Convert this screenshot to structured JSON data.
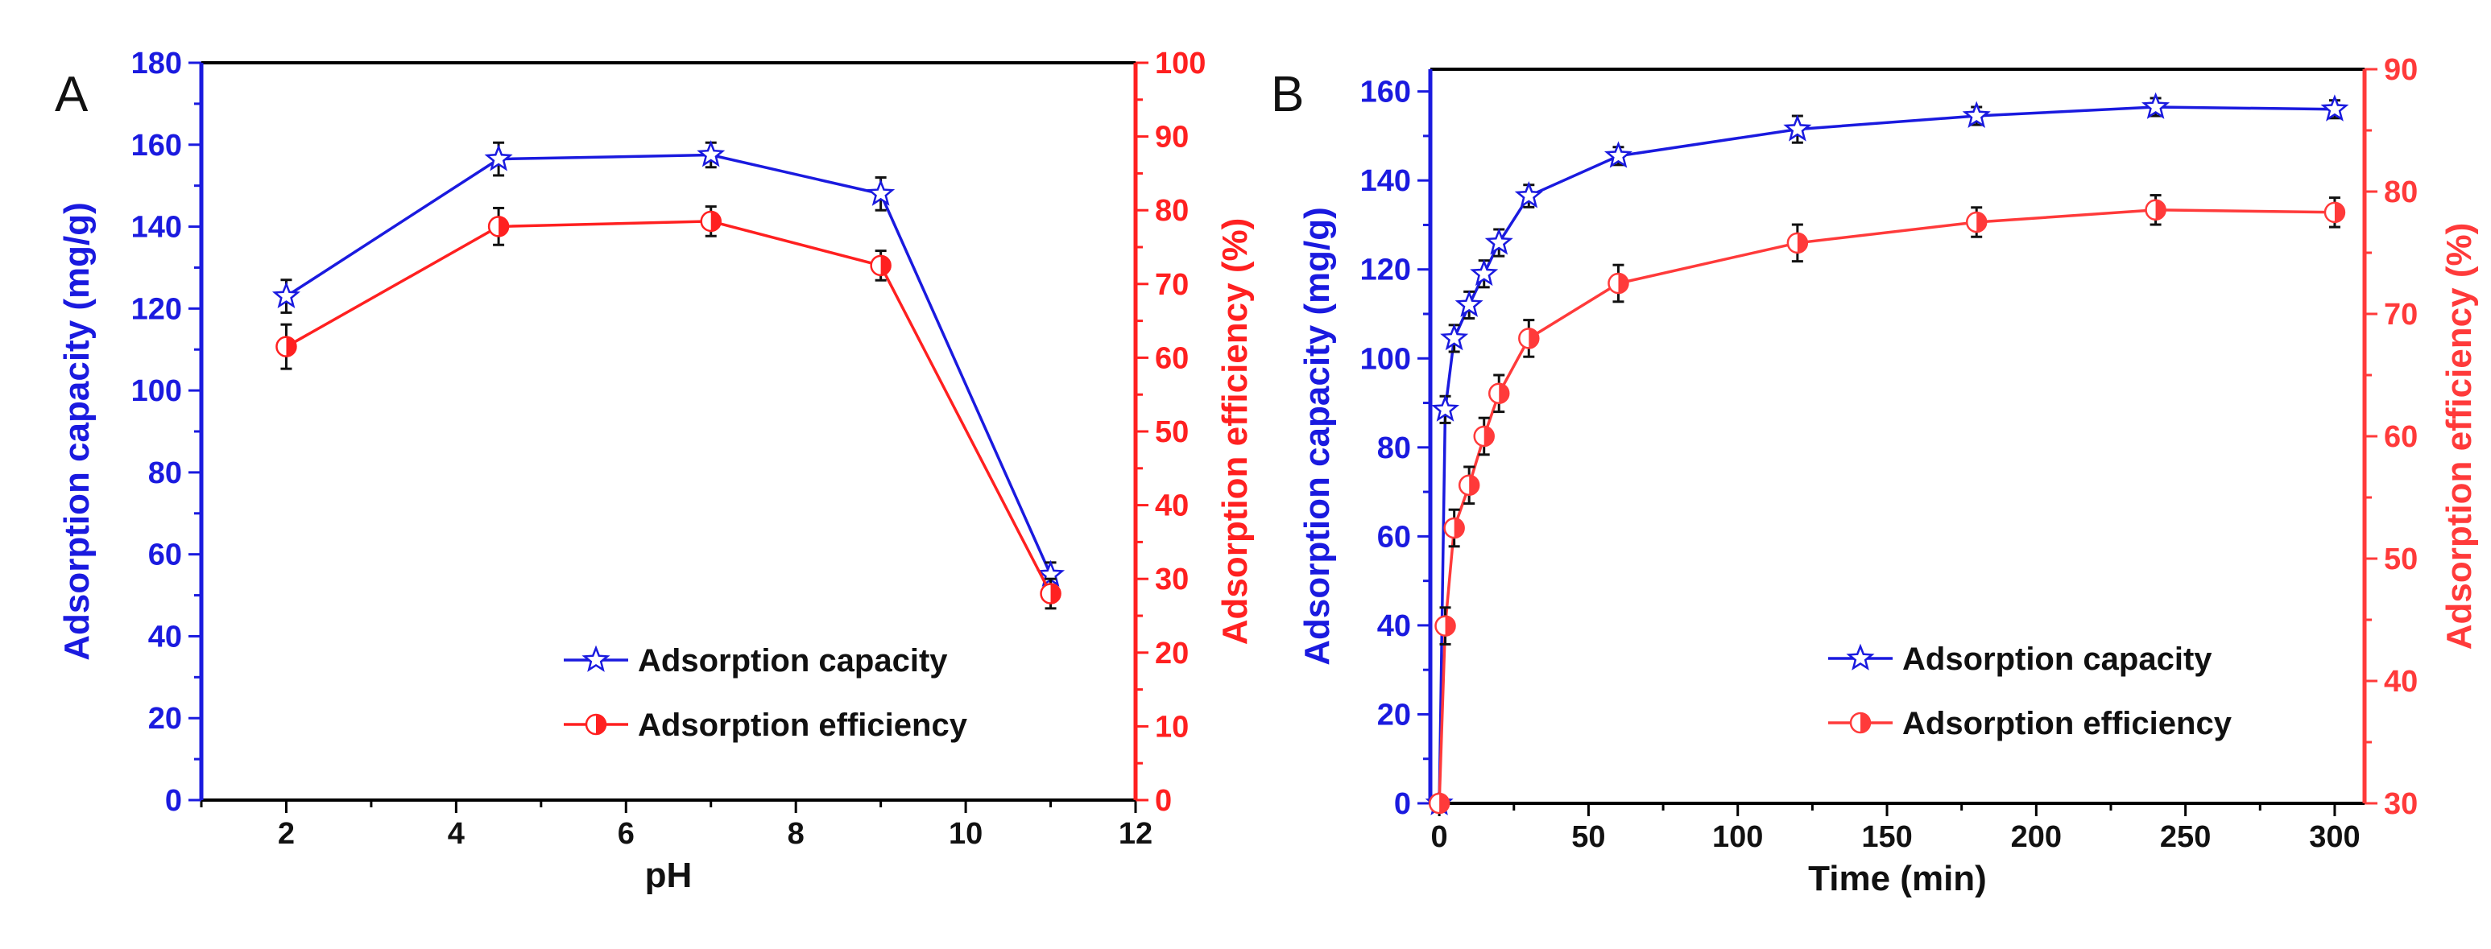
{
  "chart_data": [
    {
      "type": "line",
      "panel_label": "A",
      "xlabel": "pH",
      "ylabel": "Adsorption capacity (mg/g)",
      "y2label": "Adsorption efficiency (%)",
      "xlim": [
        1,
        12
      ],
      "ylim": [
        0,
        180
      ],
      "y2lim": [
        0,
        100
      ],
      "xticks": [
        2,
        4,
        6,
        8,
        10,
        12
      ],
      "yticks": [
        0,
        20,
        40,
        60,
        80,
        100,
        120,
        140,
        160,
        180
      ],
      "y2ticks": [
        0,
        10,
        20,
        30,
        40,
        50,
        60,
        70,
        80,
        90,
        100
      ],
      "legend_position": "bottom-right",
      "series": [
        {
          "name": "Adsorption capacity",
          "axis": "left",
          "color": "#1a1adf",
          "marker": "star",
          "x": [
            2,
            4.5,
            7,
            9,
            11
          ],
          "y": [
            123,
            156.5,
            157.5,
            148,
            55
          ],
          "err": [
            4,
            4,
            3,
            4,
            3
          ]
        },
        {
          "name": "Adsorption efficiency",
          "axis": "right",
          "color": "#ff2020",
          "marker": "half-circle",
          "x": [
            2,
            4.5,
            7,
            9,
            11
          ],
          "y": [
            61.5,
            77.8,
            78.5,
            72.5,
            28
          ],
          "err": [
            3,
            2.5,
            2,
            2,
            2
          ]
        }
      ]
    },
    {
      "type": "line",
      "panel_label": "B",
      "xlabel": "Time (min)",
      "ylabel": "Adsorption capacity (mg/g)",
      "y2label": "Adsorption efficiency (%)",
      "xlim": [
        -3,
        310
      ],
      "ylim": [
        0,
        165
      ],
      "y2lim": [
        30,
        90
      ],
      "xticks": [
        0,
        50,
        100,
        150,
        200,
        250,
        300
      ],
      "yticks": [
        0,
        20,
        40,
        60,
        80,
        100,
        120,
        140,
        160
      ],
      "y2ticks": [
        30,
        40,
        50,
        60,
        70,
        80,
        90
      ],
      "legend_position": "bottom-right",
      "series": [
        {
          "name": "Adsorption capacity",
          "axis": "left",
          "color": "#1a1adf",
          "marker": "star",
          "x": [
            0,
            2,
            5,
            10,
            15,
            20,
            30,
            60,
            120,
            180,
            240,
            300
          ],
          "y": [
            0,
            88.5,
            104.5,
            112,
            119,
            126,
            136.5,
            145.5,
            151.5,
            154.5,
            156.5,
            156
          ],
          "err": [
            0,
            3,
            3,
            3,
            3,
            3,
            2.5,
            2,
            3,
            2,
            2,
            2
          ]
        },
        {
          "name": "Adsorption efficiency",
          "axis": "right",
          "color": "#ff3a3a",
          "marker": "half-circle",
          "x": [
            0,
            2,
            5,
            10,
            15,
            20,
            30,
            60,
            120,
            180,
            240,
            300
          ],
          "y": [
            30,
            44.5,
            52.5,
            56,
            60,
            63.5,
            68,
            72.5,
            75.8,
            77.5,
            78.5,
            78.3
          ],
          "err": [
            0,
            1.5,
            1.5,
            1.5,
            1.5,
            1.5,
            1.5,
            1.5,
            1.5,
            1.2,
            1.2,
            1.2
          ]
        }
      ]
    }
  ]
}
